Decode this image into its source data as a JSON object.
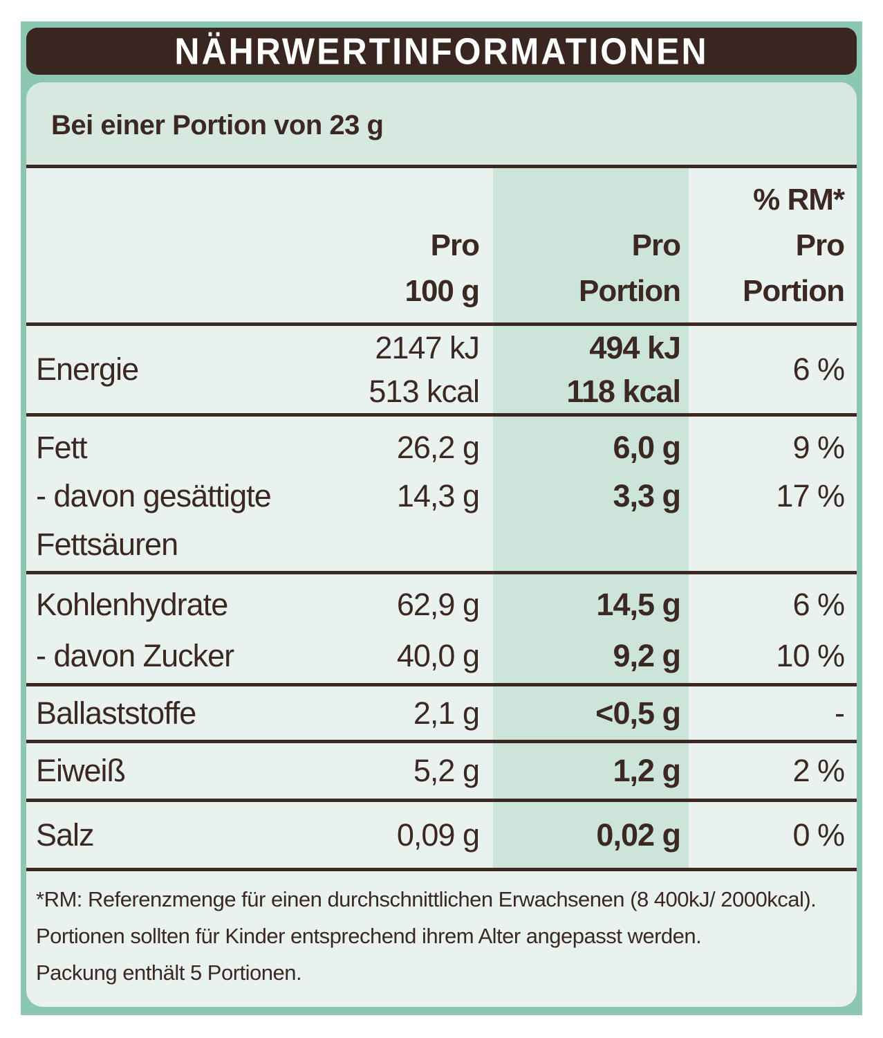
{
  "colors": {
    "background_teal": "#8cc7b1",
    "panel_body": "#e9f2ee",
    "serving_strip": "#d7e8e1",
    "column_band": "#cde4db",
    "text_brown": "#3b2823",
    "title_bar": "#3a2620",
    "title_text": "#ffffff"
  },
  "title": "NÄHRWERTINFORMATIONEN",
  "serving_header": "Bei einer Portion von 23 g",
  "table": {
    "headers": {
      "per100": [
        "Pro",
        "100 g"
      ],
      "portion": [
        "Pro",
        "Portion"
      ],
      "rm": [
        "% RM*",
        "Pro",
        "Portion"
      ]
    },
    "rows": [
      {
        "label": "Energie",
        "per100": [
          "2147 kJ",
          "513 kcal"
        ],
        "portion": [
          "494 kJ",
          "118 kcal"
        ],
        "rm": "6 %"
      },
      {
        "labels": [
          "Fett",
          "- davon gesättigte",
          "Fettsäuren"
        ],
        "per100": [
          "26,2 g",
          "14,3 g"
        ],
        "portion": [
          "6,0 g",
          "3,3 g"
        ],
        "rm": [
          "9 %",
          "17 %"
        ]
      },
      {
        "labels": [
          "Kohlenhydrate",
          "- davon Zucker"
        ],
        "per100": [
          "62,9 g",
          "40,0 g"
        ],
        "portion": [
          "14,5 g",
          "9,2 g"
        ],
        "rm": [
          "6 %",
          "10 %"
        ]
      },
      {
        "label": "Ballaststoffe",
        "per100": "2,1 g",
        "portion": "<0,5 g",
        "rm": "-"
      },
      {
        "label": "Eiweiß",
        "per100": "5,2 g",
        "portion": "1,2 g",
        "rm": "2 %"
      },
      {
        "label": "Salz",
        "per100": "0,09 g",
        "portion": "0,02 g",
        "rm": "0 %"
      }
    ],
    "footnote": [
      "*RM: Referenzmenge für einen durchschnittlichen Erwachsenen (8 400kJ/ 2000kcal).",
      "Portionen sollten für Kinder entsprechend ihrem Alter angepasst werden.",
      "Packung enthält 5 Portionen."
    ]
  }
}
